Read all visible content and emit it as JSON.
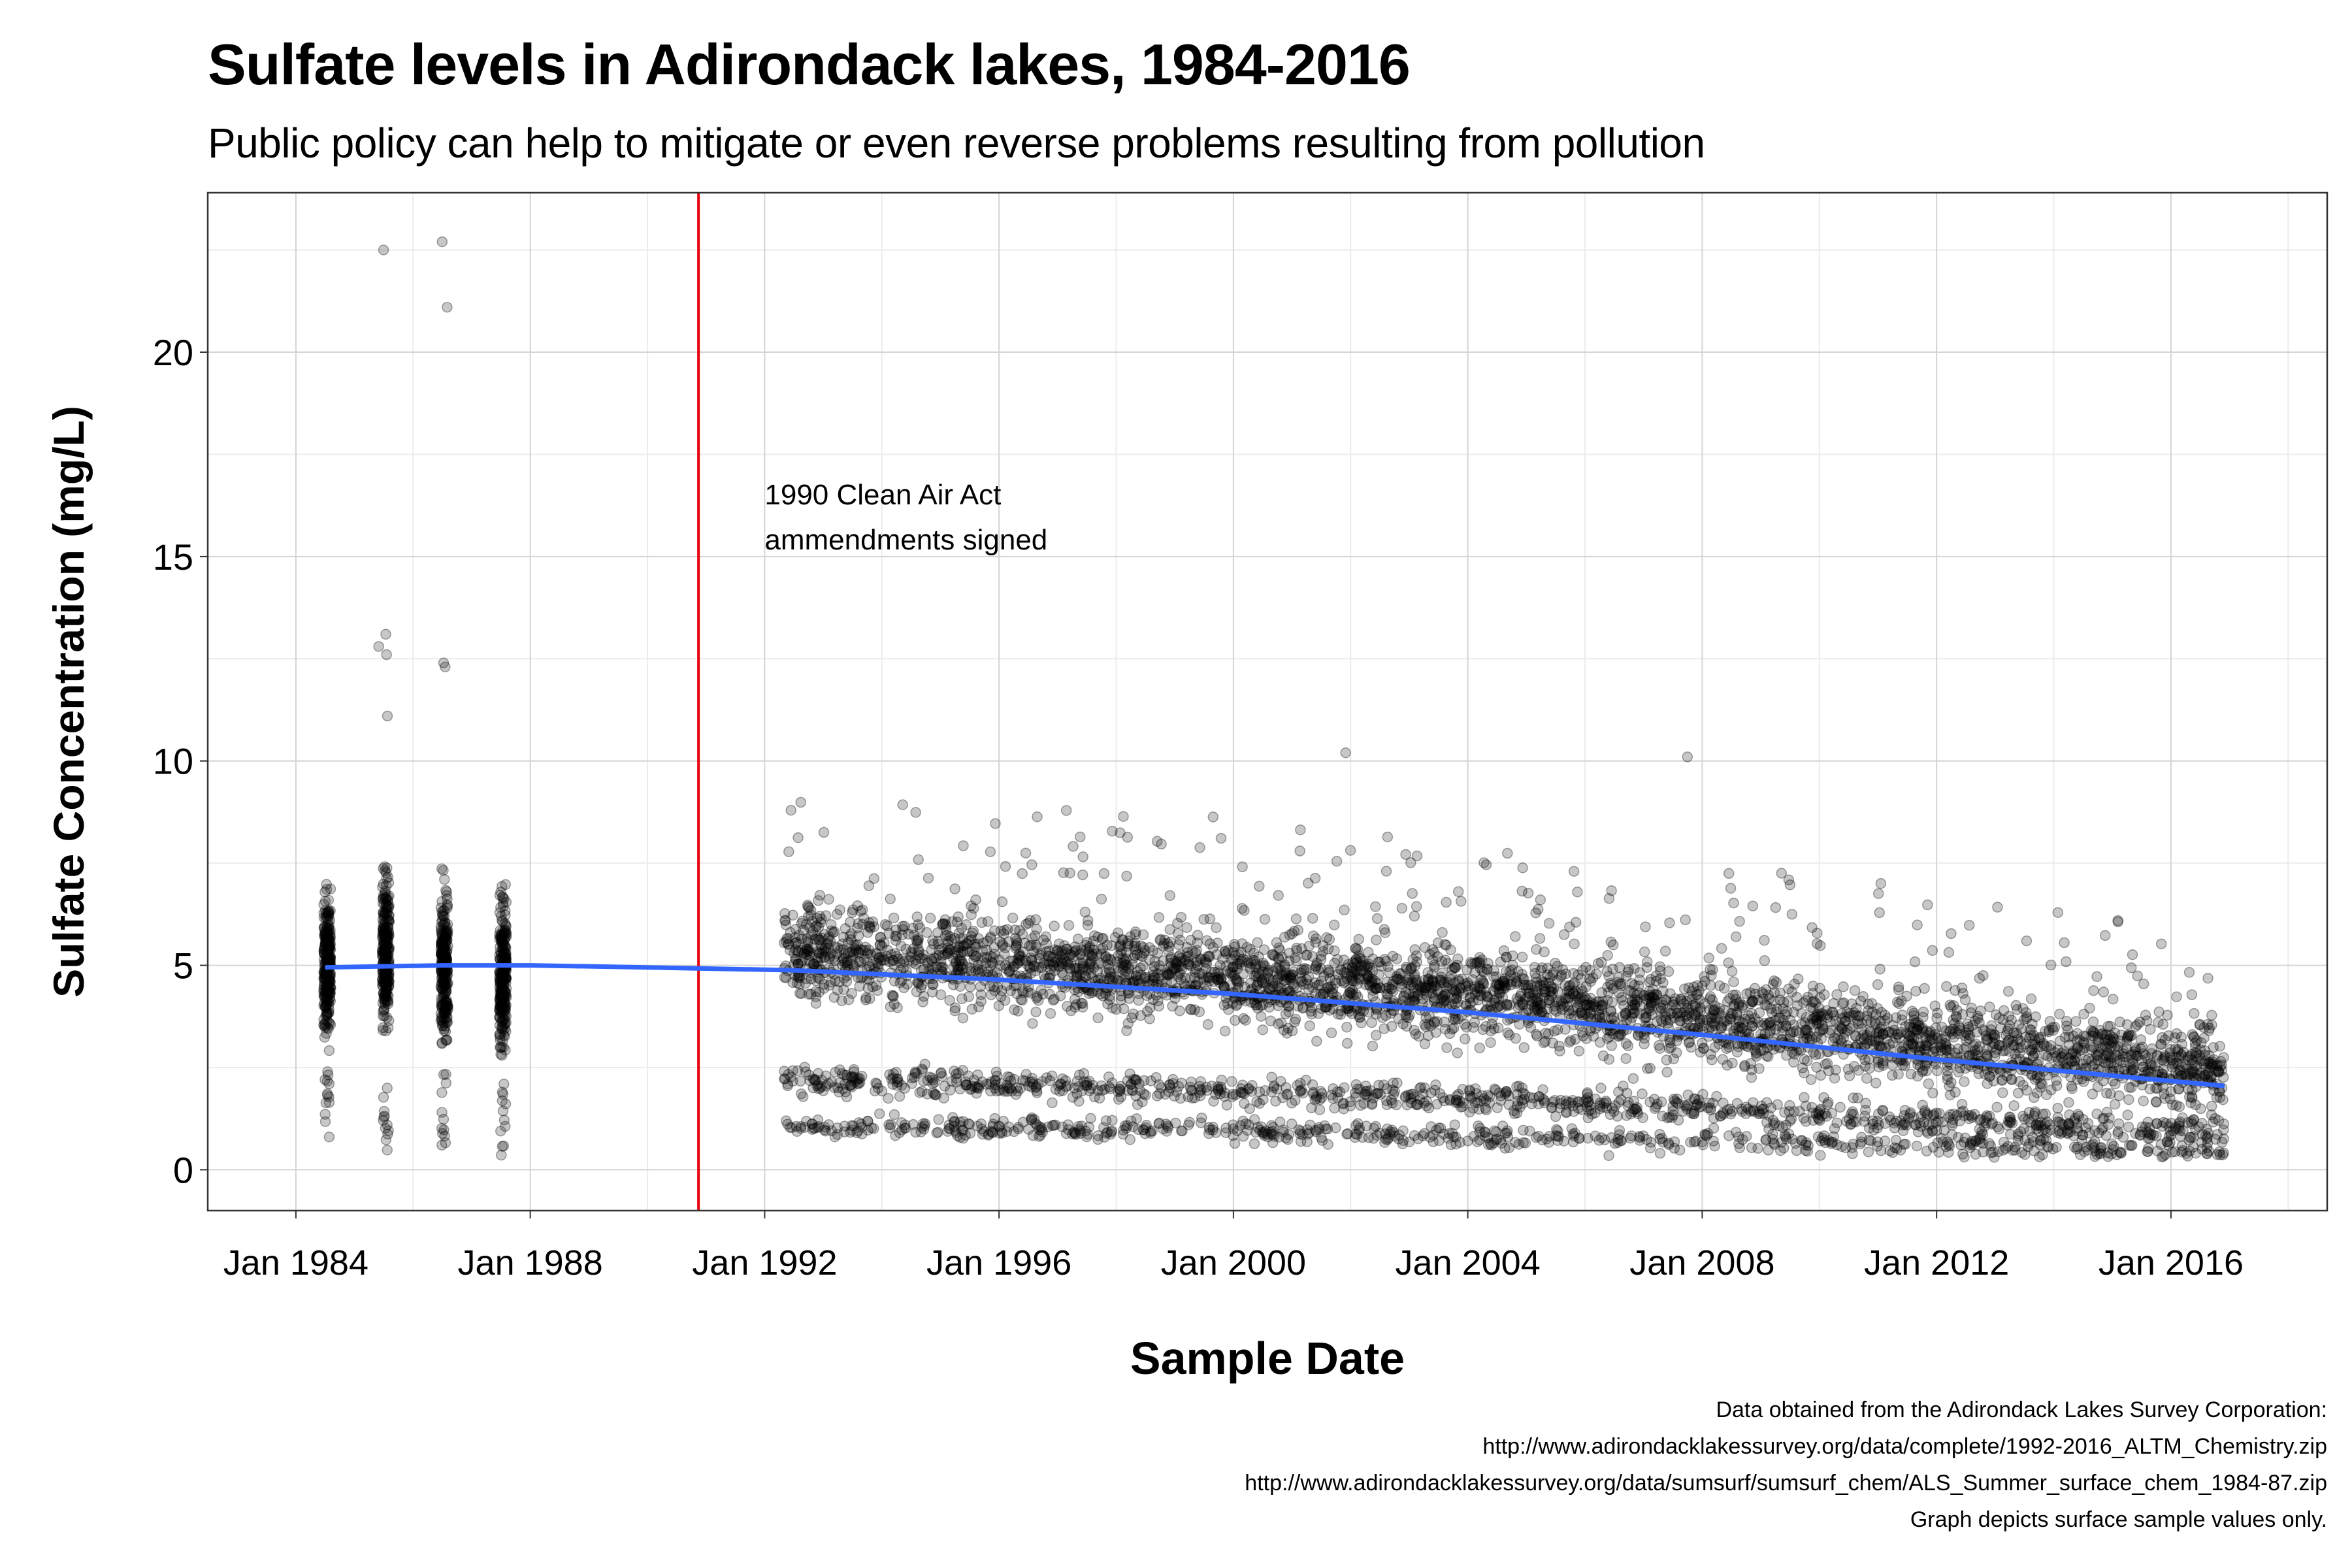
{
  "chart_data": {
    "type": "scatter",
    "title": "Sulfate levels in Adirondack lakes, 1984-2016",
    "subtitle": "Public policy can help to mitigate or even reverse problems resulting from pollution",
    "xlabel": "Sample Date",
    "ylabel": "Sulfate Concentration (mg/L)",
    "x_ticks": [
      "Jan 1984",
      "Jan 1988",
      "Jan 1992",
      "Jan 1996",
      "Jan 2000",
      "Jan 2004",
      "Jan 2008",
      "Jan 2012",
      "Jan 2016"
    ],
    "y_ticks": [
      "0",
      "5",
      "10",
      "15",
      "20"
    ],
    "xlim": [
      "1982-07-01",
      "2018-09-01"
    ],
    "ylim": [
      -1,
      23.9
    ],
    "grid": true,
    "point_color": "#000000",
    "trend_color": "#3366FF",
    "vline_color": "#E8000B",
    "series": [
      {
        "kind": "scatter",
        "description_clusters_1984_1987": [
          {
            "date": "1984-07-15",
            "center": 5.0,
            "min": 0.7,
            "max": 9.1
          },
          {
            "date": "1985-07-15",
            "center": 5.2,
            "min": 0.1,
            "max": 22.5
          },
          {
            "date": "1986-07-15",
            "center": 5.0,
            "min": 0.4,
            "max": 22.7
          },
          {
            "date": "1987-07-15",
            "center": 4.8,
            "min": 0.3,
            "max": 8.2
          }
        ],
        "outliers": [
          {
            "date": "1985-07-01",
            "y": 22.5
          },
          {
            "date": "1986-07-01",
            "y": 22.7
          },
          {
            "date": "1986-08-01",
            "y": 21.1
          },
          {
            "date": "1985-06-01",
            "y": 12.8
          },
          {
            "date": "1985-07-15",
            "y": 13.1
          },
          {
            "date": "1985-07-20",
            "y": 12.6
          },
          {
            "date": "1985-07-25",
            "y": 11.1
          },
          {
            "date": "1986-07-10",
            "y": 12.4
          },
          {
            "date": "1986-07-20",
            "y": 12.3
          },
          {
            "date": "2001-12-01",
            "y": 10.2
          },
          {
            "date": "2007-10-01",
            "y": 10.1
          }
        ]
      },
      {
        "kind": "loess",
        "x": [
          "1984-07-01",
          "1986-07-01",
          "1988-01-01",
          "1990-01-01",
          "1992-07-01",
          "1996-01-01",
          "2000-01-01",
          "2004-01-01",
          "2008-01-01",
          "2012-01-01",
          "2016-12-01"
        ],
        "y": [
          4.95,
          5.0,
          5.0,
          4.95,
          4.88,
          4.65,
          4.3,
          3.85,
          3.3,
          2.7,
          2.05
        ]
      }
    ],
    "annotation": {
      "vline_date": "1990-11-15",
      "text_lines": [
        "1990 Clean Air Act",
        "ammendments signed"
      ],
      "text_date": "1992-01-01",
      "text_y": [
        16.5,
        15.4
      ]
    }
  },
  "caption": {
    "lines": [
      "Data obtained from the Adirondack Lakes Survey Corporation:",
      "http://www.adirondacklakessurvey.org/data/complete/1992-2016_ALTM_Chemistry.zip",
      "http://www.adirondacklakessurvey.org/data/sumsurf/sumsurf_chem/ALS_Summer_surface_chem_1984-87.zip",
      "Graph depicts surface sample values only."
    ]
  }
}
